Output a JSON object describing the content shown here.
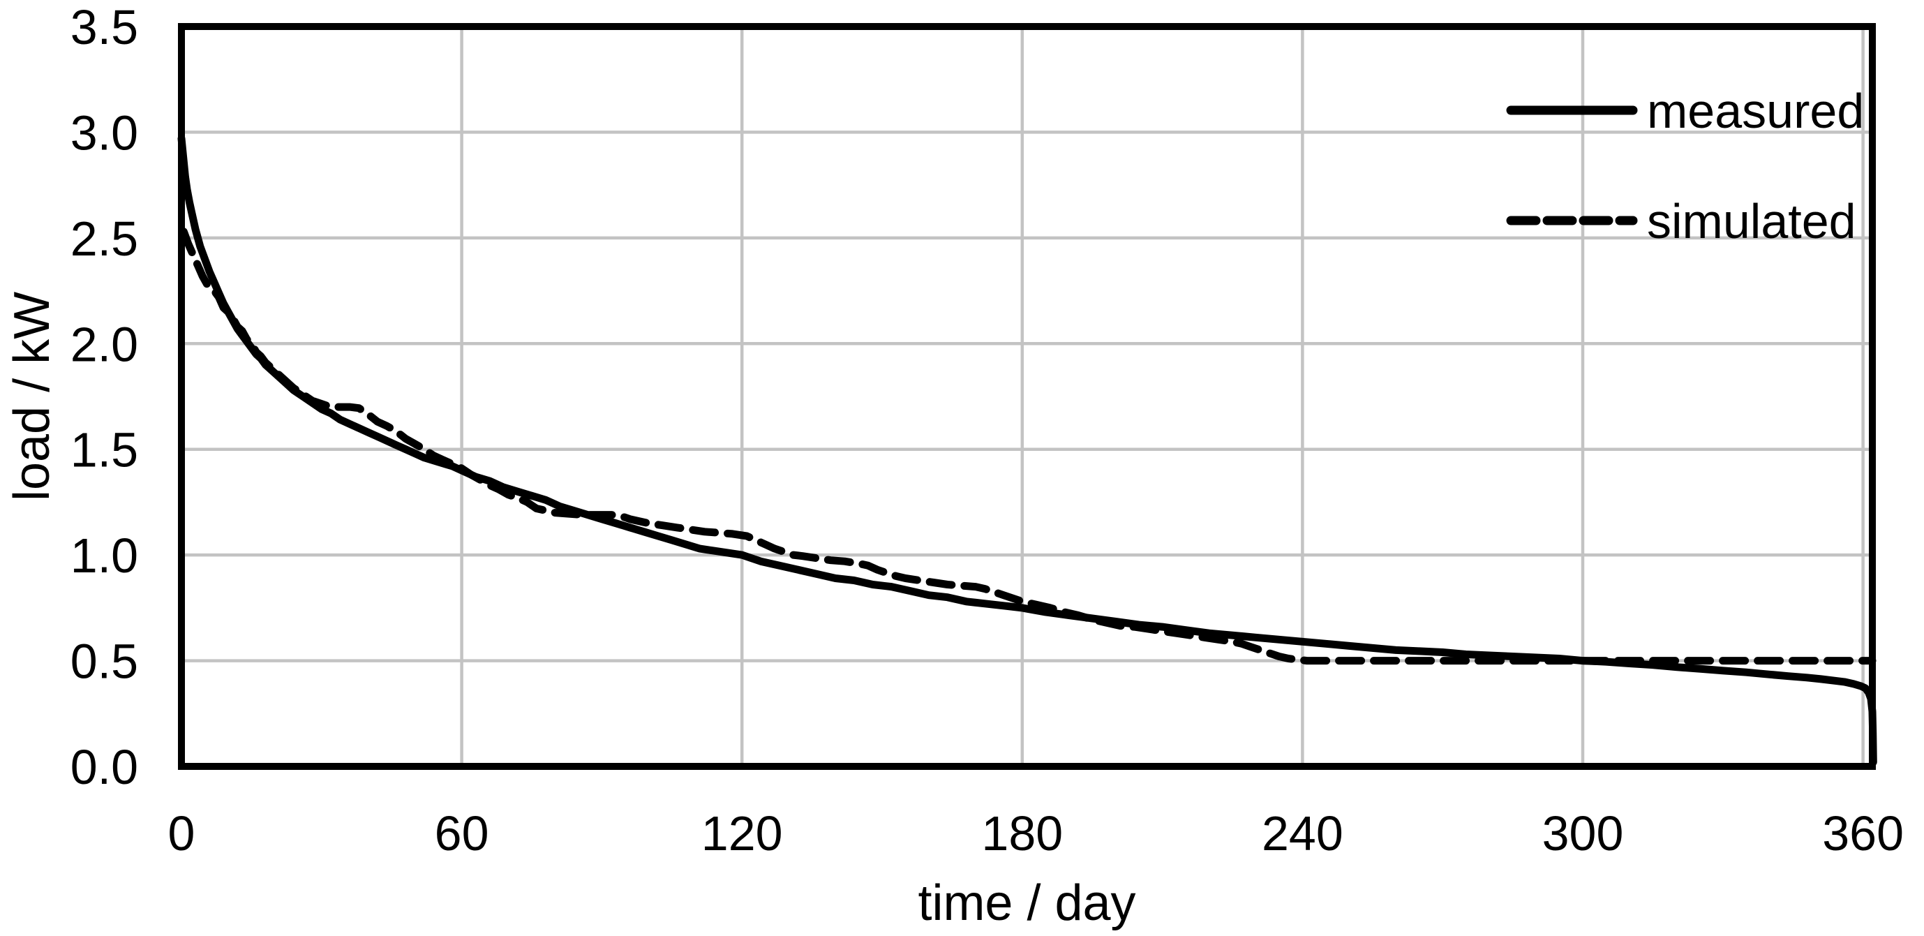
{
  "chart_data": {
    "type": "line",
    "title": "",
    "xlabel": "time / day",
    "ylabel": "load / kW",
    "xlim": [
      0,
      362
    ],
    "ylim": [
      0,
      3.5
    ],
    "x_ticks": [
      0,
      60,
      120,
      180,
      240,
      300,
      360
    ],
    "y_tick_labels": [
      "0.0",
      "0.5",
      "1.0",
      "1.5",
      "2.0",
      "2.5",
      "3.0",
      "3.5"
    ],
    "y_tick_values": [
      0,
      0.5,
      1.0,
      1.5,
      2.0,
      2.5,
      3.0,
      3.5
    ],
    "grid": true,
    "legend_position": "top-right-inside",
    "colors": {
      "line": "#000000",
      "grid": "#c3c3c3",
      "background": "#ffffff",
      "text": "#000000"
    },
    "series": [
      {
        "name": "measured",
        "style": "solid",
        "points": [
          [
            0,
            2.97
          ],
          [
            0.4,
            2.88
          ],
          [
            0.8,
            2.79
          ],
          [
            1.2,
            2.73
          ],
          [
            1.7,
            2.67
          ],
          [
            2.2,
            2.62
          ],
          [
            3,
            2.54
          ],
          [
            4,
            2.46
          ],
          [
            5,
            2.4
          ],
          [
            6,
            2.34
          ],
          [
            7,
            2.29
          ],
          [
            8,
            2.24
          ],
          [
            9,
            2.19
          ],
          [
            10,
            2.15
          ],
          [
            11,
            2.11
          ],
          [
            12,
            2.07
          ],
          [
            13,
            2.04
          ],
          [
            14,
            2.01
          ],
          [
            15,
            1.98
          ],
          [
            16,
            1.95
          ],
          [
            17,
            1.93
          ],
          [
            18,
            1.9
          ],
          [
            19,
            1.88
          ],
          [
            20,
            1.86
          ],
          [
            22,
            1.82
          ],
          [
            24,
            1.78
          ],
          [
            26,
            1.75
          ],
          [
            28,
            1.72
          ],
          [
            30,
            1.69
          ],
          [
            32,
            1.67
          ],
          [
            34,
            1.64
          ],
          [
            36,
            1.62
          ],
          [
            38,
            1.6
          ],
          [
            40,
            1.58
          ],
          [
            42,
            1.56
          ],
          [
            44,
            1.54
          ],
          [
            46,
            1.52
          ],
          [
            48,
            1.5
          ],
          [
            50,
            1.48
          ],
          [
            52,
            1.46
          ],
          [
            55,
            1.44
          ],
          [
            58,
            1.42
          ],
          [
            60,
            1.4
          ],
          [
            63,
            1.37
          ],
          [
            66,
            1.35
          ],
          [
            69,
            1.32
          ],
          [
            72,
            1.3
          ],
          [
            75,
            1.28
          ],
          [
            78,
            1.26
          ],
          [
            81,
            1.23
          ],
          [
            84,
            1.21
          ],
          [
            87,
            1.19
          ],
          [
            90,
            1.17
          ],
          [
            93,
            1.15
          ],
          [
            96,
            1.13
          ],
          [
            99,
            1.11
          ],
          [
            102,
            1.09
          ],
          [
            105,
            1.07
          ],
          [
            108,
            1.05
          ],
          [
            111,
            1.03
          ],
          [
            114,
            1.02
          ],
          [
            117,
            1.01
          ],
          [
            120,
            1.0
          ],
          [
            124,
            0.97
          ],
          [
            128,
            0.95
          ],
          [
            132,
            0.93
          ],
          [
            136,
            0.91
          ],
          [
            140,
            0.89
          ],
          [
            144,
            0.88
          ],
          [
            148,
            0.86
          ],
          [
            152,
            0.85
          ],
          [
            156,
            0.83
          ],
          [
            160,
            0.81
          ],
          [
            164,
            0.8
          ],
          [
            168,
            0.78
          ],
          [
            172,
            0.77
          ],
          [
            176,
            0.76
          ],
          [
            180,
            0.75
          ],
          [
            185,
            0.73
          ],
          [
            190,
            0.715
          ],
          [
            195,
            0.7
          ],
          [
            200,
            0.685
          ],
          [
            205,
            0.67
          ],
          [
            210,
            0.66
          ],
          [
            215,
            0.645
          ],
          [
            220,
            0.63
          ],
          [
            225,
            0.62
          ],
          [
            230,
            0.61
          ],
          [
            235,
            0.6
          ],
          [
            240,
            0.59
          ],
          [
            245,
            0.58
          ],
          [
            250,
            0.57
          ],
          [
            255,
            0.56
          ],
          [
            260,
            0.55
          ],
          [
            265,
            0.545
          ],
          [
            270,
            0.54
          ],
          [
            275,
            0.53
          ],
          [
            280,
            0.525
          ],
          [
            285,
            0.52
          ],
          [
            290,
            0.515
          ],
          [
            295,
            0.51
          ],
          [
            300,
            0.5
          ],
          [
            305,
            0.495
          ],
          [
            310,
            0.487
          ],
          [
            315,
            0.48
          ],
          [
            320,
            0.47
          ],
          [
            325,
            0.462
          ],
          [
            330,
            0.453
          ],
          [
            335,
            0.445
          ],
          [
            340,
            0.435
          ],
          [
            344,
            0.427
          ],
          [
            348,
            0.42
          ],
          [
            351,
            0.413
          ],
          [
            354,
            0.405
          ],
          [
            356,
            0.4
          ],
          [
            358,
            0.39
          ],
          [
            359.5,
            0.38
          ],
          [
            360.5,
            0.37
          ],
          [
            361.2,
            0.35
          ],
          [
            361.7,
            0.32
          ],
          [
            362,
            0.26
          ],
          [
            362.1,
            0.16
          ],
          [
            362.2,
            0.02
          ]
        ]
      },
      {
        "name": "simulated",
        "style": "dashed",
        "points": [
          [
            0.5,
            2.53
          ],
          [
            1.5,
            2.47
          ],
          [
            2.5,
            2.42
          ],
          [
            3.5,
            2.37
          ],
          [
            4.5,
            2.32
          ],
          [
            5.5,
            2.28
          ],
          [
            7,
            2.25
          ],
          [
            8,
            2.22
          ],
          [
            9,
            2.17
          ],
          [
            10,
            2.15
          ],
          [
            11,
            2.12
          ],
          [
            12,
            2.08
          ],
          [
            13,
            2.06
          ],
          [
            14,
            2.02
          ],
          [
            15,
            2.0
          ],
          [
            16,
            1.96
          ],
          [
            17,
            1.94
          ],
          [
            18,
            1.91
          ],
          [
            19,
            1.89
          ],
          [
            20,
            1.87
          ],
          [
            22,
            1.83
          ],
          [
            24,
            1.79
          ],
          [
            26,
            1.76
          ],
          [
            28,
            1.73
          ],
          [
            30,
            1.715
          ],
          [
            32,
            1.7
          ],
          [
            34,
            1.7
          ],
          [
            36,
            1.7
          ],
          [
            38,
            1.695
          ],
          [
            39,
            1.68
          ],
          [
            40,
            1.665
          ],
          [
            42,
            1.63
          ],
          [
            44,
            1.61
          ],
          [
            46,
            1.585
          ],
          [
            48,
            1.55
          ],
          [
            50,
            1.525
          ],
          [
            52,
            1.5
          ],
          [
            54,
            1.47
          ],
          [
            56,
            1.45
          ],
          [
            58,
            1.43
          ],
          [
            60,
            1.41
          ],
          [
            62,
            1.38
          ],
          [
            64,
            1.355
          ],
          [
            66,
            1.33
          ],
          [
            68,
            1.31
          ],
          [
            70,
            1.285
          ],
          [
            72,
            1.27
          ],
          [
            74,
            1.25
          ],
          [
            75,
            1.235
          ],
          [
            76,
            1.22
          ],
          [
            78,
            1.21
          ],
          [
            80,
            1.2
          ],
          [
            83,
            1.195
          ],
          [
            86,
            1.19
          ],
          [
            89,
            1.19
          ],
          [
            92,
            1.19
          ],
          [
            94,
            1.185
          ],
          [
            96,
            1.17
          ],
          [
            98,
            1.16
          ],
          [
            100,
            1.15
          ],
          [
            103,
            1.14
          ],
          [
            106,
            1.13
          ],
          [
            109,
            1.12
          ],
          [
            112,
            1.11
          ],
          [
            115,
            1.105
          ],
          [
            118,
            1.1
          ],
          [
            121,
            1.09
          ],
          [
            123,
            1.07
          ],
          [
            125,
            1.05
          ],
          [
            127,
            1.03
          ],
          [
            129,
            1.015
          ],
          [
            131,
            1.0
          ],
          [
            133,
            0.995
          ],
          [
            136,
            0.985
          ],
          [
            139,
            0.975
          ],
          [
            142,
            0.97
          ],
          [
            145,
            0.96
          ],
          [
            147,
            0.95
          ],
          [
            149,
            0.93
          ],
          [
            151,
            0.915
          ],
          [
            153,
            0.9
          ],
          [
            155,
            0.89
          ],
          [
            158,
            0.88
          ],
          [
            161,
            0.87
          ],
          [
            164,
            0.86
          ],
          [
            167,
            0.855
          ],
          [
            170,
            0.85
          ],
          [
            172,
            0.84
          ],
          [
            174,
            0.825
          ],
          [
            176,
            0.81
          ],
          [
            178,
            0.795
          ],
          [
            180,
            0.78
          ],
          [
            183,
            0.765
          ],
          [
            186,
            0.75
          ],
          [
            189,
            0.73
          ],
          [
            192,
            0.715
          ],
          [
            195,
            0.695
          ],
          [
            198,
            0.68
          ],
          [
            201,
            0.665
          ],
          [
            204,
            0.66
          ],
          [
            207,
            0.65
          ],
          [
            210,
            0.64
          ],
          [
            213,
            0.63
          ],
          [
            216,
            0.62
          ],
          [
            219,
            0.61
          ],
          [
            222,
            0.6
          ],
          [
            225,
            0.59
          ],
          [
            227,
            0.58
          ],
          [
            229,
            0.565
          ],
          [
            231,
            0.55
          ],
          [
            233,
            0.535
          ],
          [
            235,
            0.52
          ],
          [
            237,
            0.51
          ],
          [
            239,
            0.505
          ],
          [
            241,
            0.5
          ],
          [
            250,
            0.5
          ],
          [
            270,
            0.5
          ],
          [
            290,
            0.5
          ],
          [
            310,
            0.5
          ],
          [
            330,
            0.5
          ],
          [
            350,
            0.5
          ],
          [
            362,
            0.5
          ]
        ]
      }
    ]
  }
}
